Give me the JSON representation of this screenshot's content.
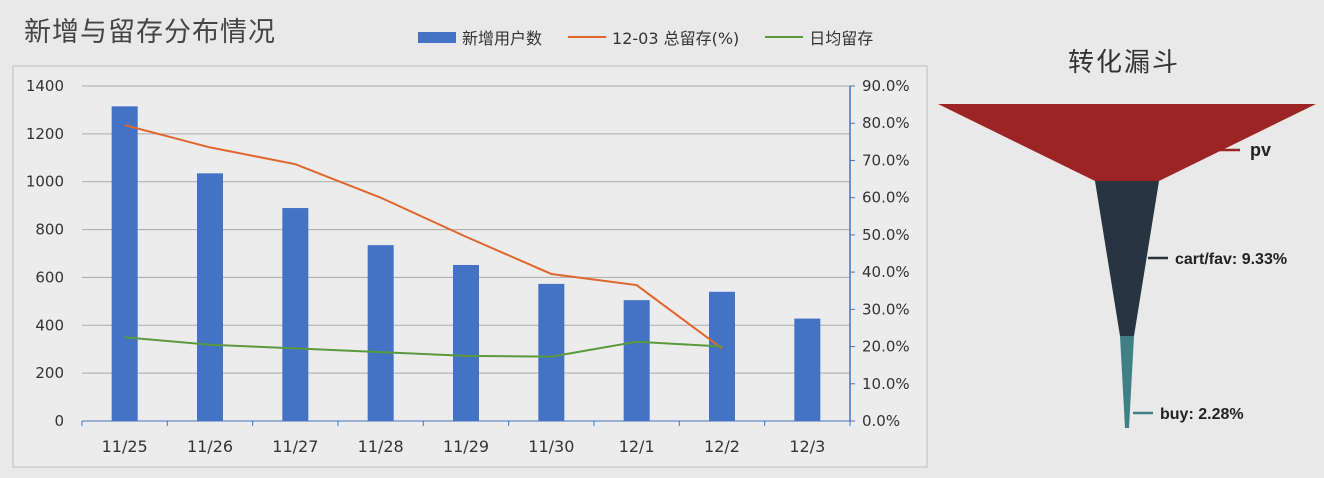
{
  "title": "新增与留存分布情况",
  "legend": [
    {
      "name": "新增用户数",
      "type": "bar",
      "color": "#4472c4"
    },
    {
      "name": "12-03 总留存(%)",
      "type": "line",
      "color": "#e0662c"
    },
    {
      "name": "日均留存",
      "type": "line",
      "color": "#5a9a3c"
    }
  ],
  "chart_data": [
    {
      "type": "bar",
      "categories": [
        "11/25",
        "11/26",
        "11/27",
        "11/28",
        "11/29",
        "11/30",
        "12/1",
        "12/2",
        "12/3"
      ],
      "ylim": [
        0,
        1400
      ],
      "y2lim": [
        0,
        90
      ],
      "yticks": [
        "0",
        "200",
        "400",
        "600",
        "800",
        "1000",
        "1200",
        "1400"
      ],
      "y2ticks": [
        "0.0%",
        "10.0%",
        "20.0%",
        "30.0%",
        "40.0%",
        "50.0%",
        "60.0%",
        "70.0%",
        "80.0%",
        "90.0%"
      ],
      "grid": true,
      "series": [
        {
          "name": "新增用户数",
          "type": "bar",
          "axis": "left",
          "color": "#4472c4",
          "values": [
            1315,
            1035,
            890,
            735,
            652,
            573,
            505,
            540,
            428
          ]
        },
        {
          "name": "12-03 总留存(%)",
          "type": "line",
          "axis": "right",
          "color": "#e0662c",
          "values": [
            79.5,
            73.5,
            69,
            60,
            49.5,
            39.5,
            36.5,
            19.5,
            null
          ]
        },
        {
          "name": "日均留存",
          "type": "line",
          "axis": "right",
          "color": "#5a9a3c",
          "values": [
            22.5,
            20.5,
            19.5,
            18.5,
            17.5,
            17.3,
            21.3,
            20,
            null
          ]
        }
      ]
    },
    {
      "type": "funnel",
      "title": "转化漏斗",
      "stages": [
        {
          "label": "pv",
          "color": "#9c2424"
        },
        {
          "label": "cart/fav: 9.33%",
          "value": 9.33,
          "color": "#283540"
        },
        {
          "label": "buy: 2.28%",
          "value": 2.28,
          "color": "#3f7f86"
        }
      ]
    }
  ]
}
